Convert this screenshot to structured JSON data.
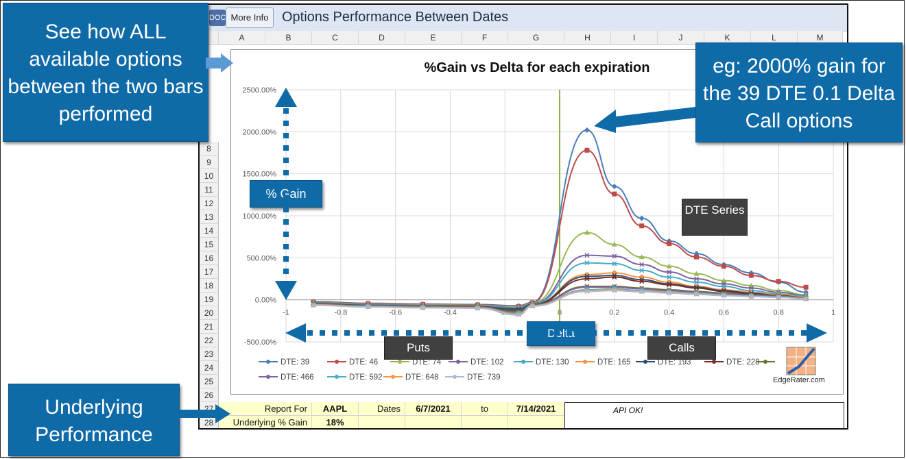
{
  "window": {
    "title": "Options Performance Between Dates",
    "more_info": "More Info",
    "doc_icon": "DOC"
  },
  "columns": [
    "A",
    "B",
    "C",
    "D",
    "E",
    "F",
    "G",
    "H",
    "I",
    "J",
    "K",
    "L",
    "M"
  ],
  "rows": [
    "8",
    "9",
    "10",
    "11",
    "12",
    "13",
    "14",
    "15",
    "16",
    "17",
    "18",
    "19",
    "20",
    "21",
    "22",
    "23",
    "24",
    "25",
    "26",
    "27",
    "28"
  ],
  "sheet": {
    "report_for_label": "Report For",
    "ticker": "AAPL",
    "dates_label": "Dates",
    "start_date": "6/7/2021",
    "to_label": "to",
    "end_date": "7/14/2021",
    "underlying_label": "Underlying % Gain",
    "underlying_value": "18%",
    "api_status": "API OK!"
  },
  "callouts": {
    "all_options": "See how ALL available options between the two bars performed",
    "example": "eg: 2000% gain for the 39 DTE 0.1 Delta Call options",
    "underlying": "Underlying Performance",
    "pct_gain": "% Gain",
    "dte_series": "DTE Series",
    "puts": "Puts",
    "delta": "Delta",
    "calls": "Calls"
  },
  "brand": {
    "name": "EdgeRater.com"
  },
  "chart_data": {
    "type": "line",
    "title": "%Gain vs Delta for each expiration",
    "xlabel": "",
    "ylabel": "",
    "xlim": [
      -1,
      1
    ],
    "ylim": [
      -500,
      2500
    ],
    "x_ticks": [
      "-1",
      "-0.8",
      "-0.6",
      "-0.4",
      "-0.2",
      "0",
      "0.2",
      "0.4",
      "0.6",
      "0.8",
      "1"
    ],
    "y_ticks": [
      "2500.00%",
      "2000.00%",
      "1500.00%",
      "1000.00%",
      "500.00%",
      "0.00%",
      "-500.00%"
    ],
    "x": [
      -0.9,
      -0.7,
      -0.5,
      -0.3,
      -0.15,
      -0.1,
      0.1,
      0.2,
      0.3,
      0.4,
      0.5,
      0.6,
      0.7,
      0.8,
      0.9
    ],
    "series": [
      {
        "name": "DTE: 39",
        "color": "#4a7ebb",
        "values": [
          -20,
          -40,
          -50,
          -55,
          -70,
          -30,
          2020,
          1350,
          970,
          700,
          550,
          420,
          320,
          210,
          90
        ]
      },
      {
        "name": "DTE: 46",
        "color": "#be4b48",
        "values": [
          -25,
          -45,
          -55,
          -60,
          -80,
          -35,
          1780,
          1260,
          880,
          670,
          510,
          400,
          290,
          220,
          150
        ]
      },
      {
        "name": "DTE: 74",
        "color": "#98b954",
        "values": [
          -30,
          -50,
          -60,
          -65,
          -85,
          -40,
          800,
          660,
          510,
          400,
          310,
          230,
          170,
          110,
          60
        ]
      },
      {
        "name": "DTE: 102",
        "color": "#7d60a0",
        "values": [
          -35,
          -55,
          -65,
          -70,
          -95,
          -45,
          530,
          520,
          420,
          330,
          250,
          190,
          140,
          90,
          50
        ]
      },
      {
        "name": "DTE: 130",
        "color": "#46aac5",
        "values": [
          -40,
          -60,
          -70,
          -75,
          -100,
          -50,
          440,
          430,
          350,
          270,
          210,
          160,
          110,
          70,
          40
        ]
      },
      {
        "name": "DTE: 165",
        "color": "#f69240",
        "values": [
          -45,
          -65,
          -75,
          -80,
          -120,
          -55,
          300,
          320,
          270,
          210,
          160,
          120,
          90,
          60,
          30
        ]
      },
      {
        "name": "DTE: 193",
        "color": "#2c4d75",
        "values": [
          -45,
          -65,
          -75,
          -80,
          -110,
          -55,
          280,
          290,
          240,
          190,
          150,
          110,
          80,
          50,
          25
        ]
      },
      {
        "name": "DTE: 228",
        "color": "#772c2a",
        "values": [
          -50,
          -70,
          -80,
          -85,
          -130,
          -60,
          250,
          270,
          220,
          180,
          140,
          100,
          70,
          50,
          25
        ]
      },
      {
        "name": "",
        "color": "#5f7530",
        "values": [
          -50,
          -70,
          -80,
          -85,
          -140,
          -60,
          160,
          160,
          140,
          120,
          100,
          80,
          60,
          45,
          25
        ]
      },
      {
        "name": "DTE: 466",
        "color": "#8064a2",
        "values": [
          -55,
          -75,
          -85,
          -90,
          -150,
          -65,
          150,
          150,
          130,
          110,
          90,
          70,
          55,
          40,
          20
        ]
      },
      {
        "name": "DTE: 592",
        "color": "#4bacc6",
        "values": [
          -60,
          -80,
          -90,
          -95,
          -160,
          -70,
          120,
          130,
          110,
          95,
          80,
          60,
          45,
          35,
          15
        ]
      },
      {
        "name": "DTE: 648",
        "color": "#f79646",
        "values": [
          -60,
          -80,
          -90,
          -95,
          -170,
          -70,
          110,
          120,
          100,
          90,
          70,
          55,
          40,
          30,
          15
        ]
      },
      {
        "name": "DTE: 739",
        "color": "#aabad7",
        "values": [
          -65,
          -85,
          -95,
          -100,
          -180,
          -75,
          100,
          110,
          95,
          80,
          65,
          50,
          40,
          30,
          10
        ]
      }
    ],
    "vertical_lines": [
      {
        "x": 0,
        "color": "#8db34a"
      }
    ]
  }
}
